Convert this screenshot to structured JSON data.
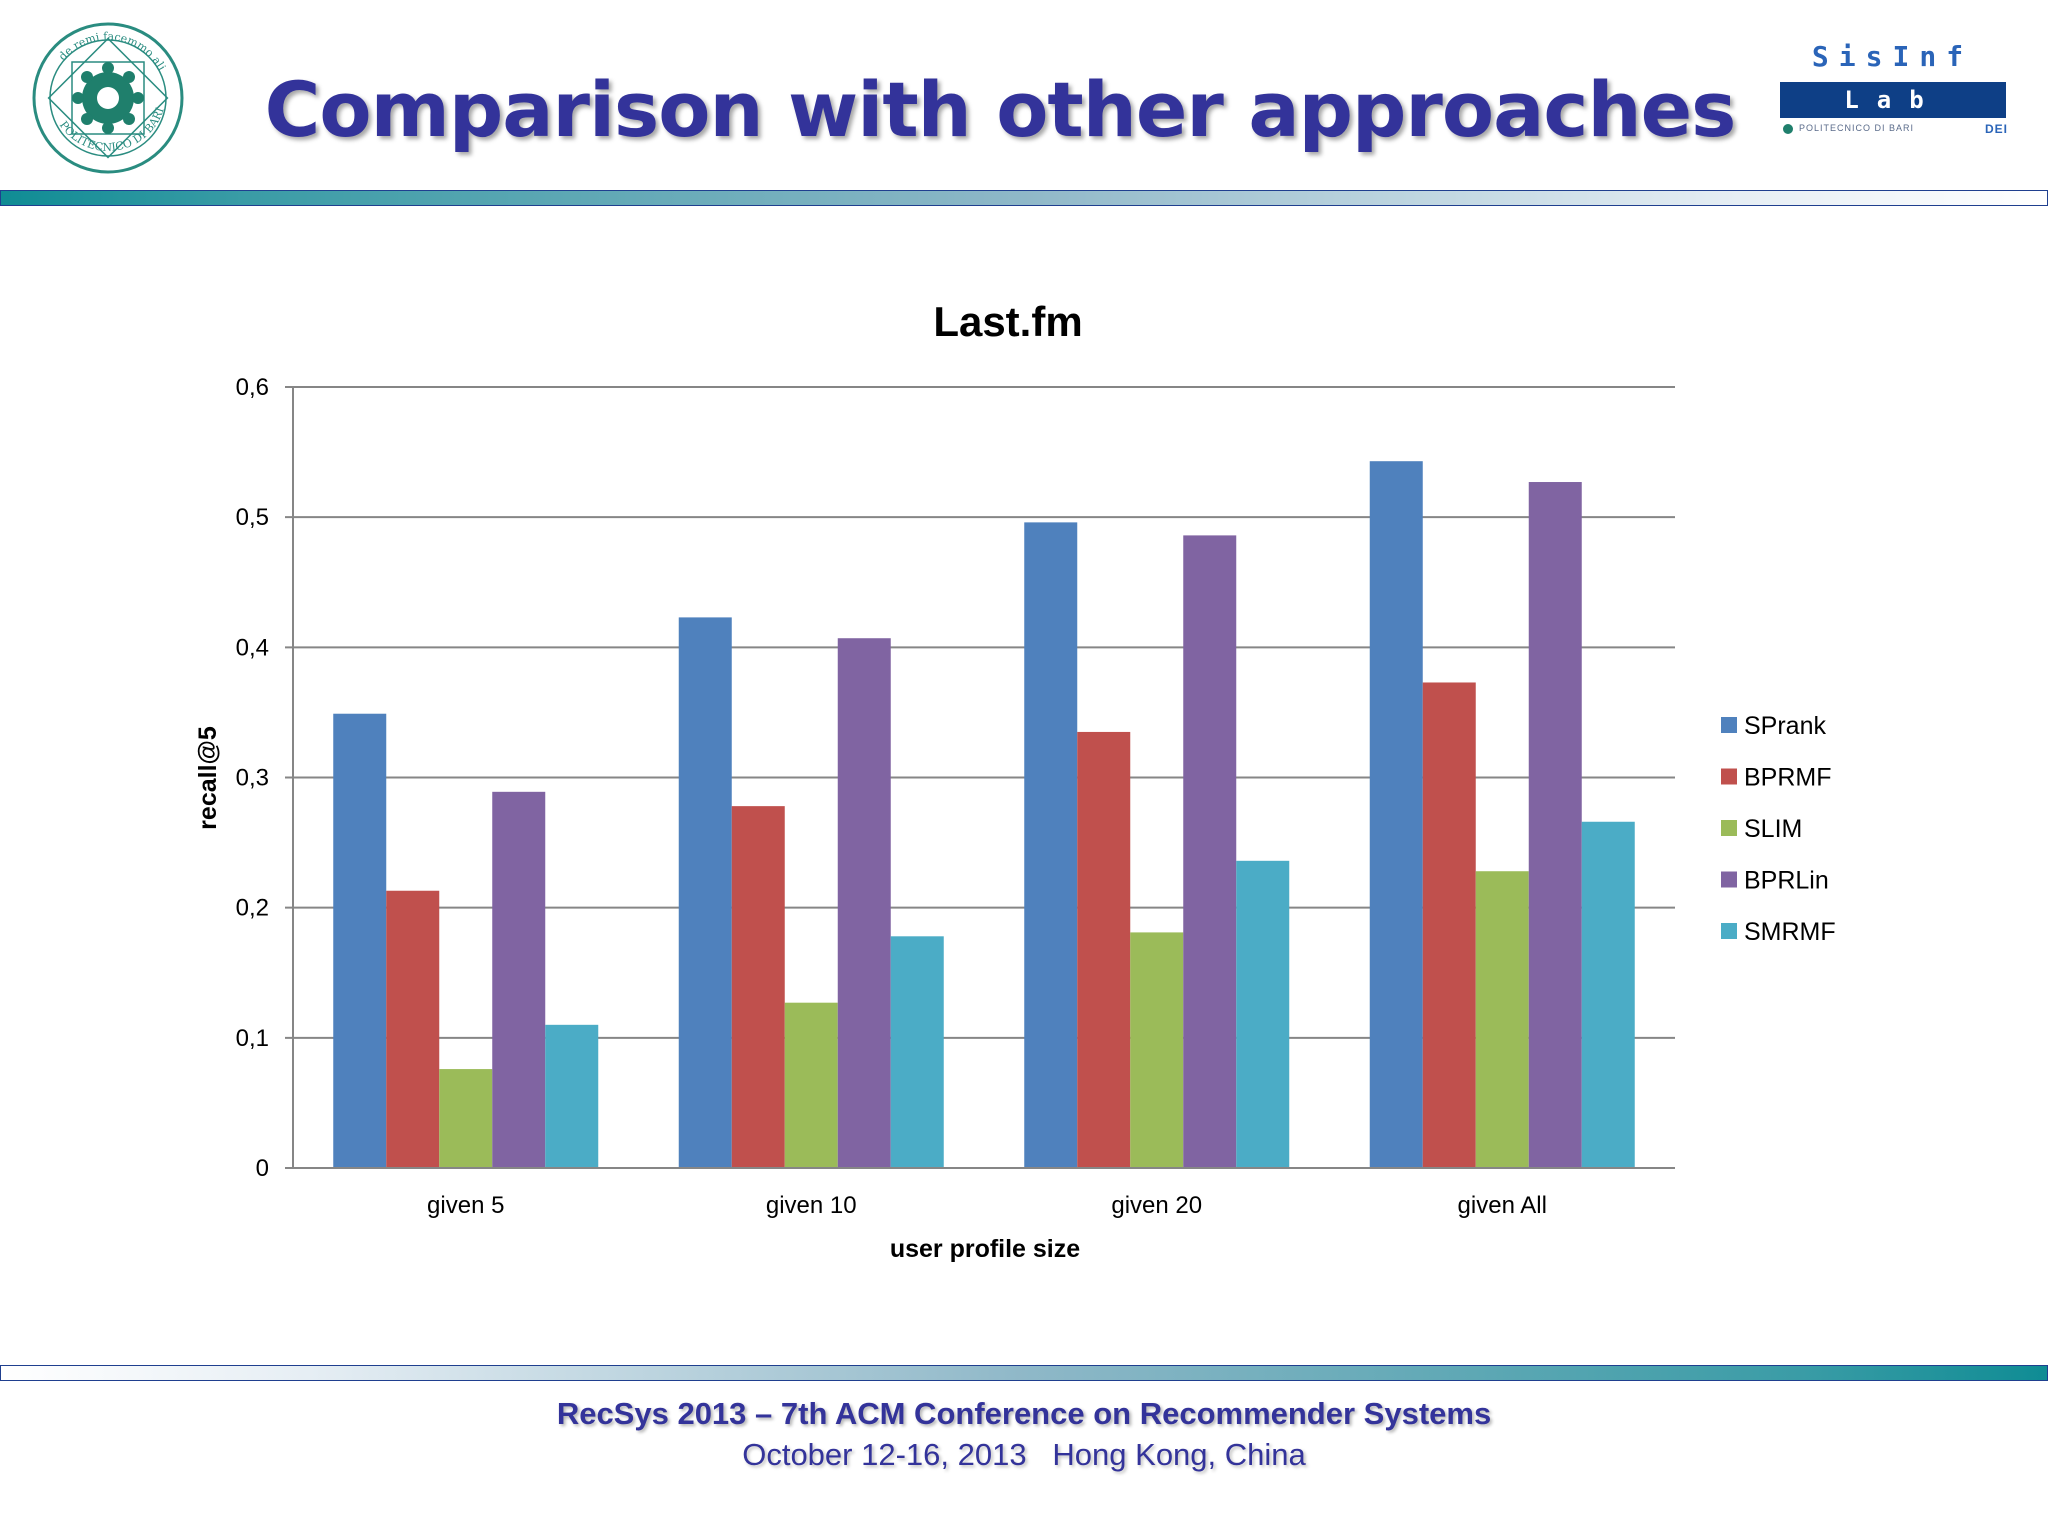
{
  "header": {
    "title": "Comparison with other approaches",
    "logo_left": {
      "icon": "politecnico-di-bari-seal-icon",
      "text": "POLITECNICO DI BARI",
      "motto": "de remi facemmo ali"
    },
    "logo_right": {
      "top": "SisInf",
      "band": "Lab",
      "sub": "POLITECNICO DI BARI",
      "mark": "DEI"
    }
  },
  "footer": {
    "line1": "RecSys 2013 – 7th ACM Conference on Recommender Systems",
    "line2": "October 12-16, 2013   Hong Kong, China"
  },
  "colors": {
    "title": "#33339a",
    "band": "#0f8c94"
  },
  "chart_data": {
    "type": "bar",
    "title": "Last.fm",
    "xlabel": "user profile size",
    "ylabel": "recall@5",
    "categories": [
      "given 5",
      "given 10",
      "given 20",
      "given All"
    ],
    "ylim": [
      0,
      0.6
    ],
    "yticks": [
      {
        "value": 0,
        "label": "0"
      },
      {
        "value": 0.1,
        "label": "0,1"
      },
      {
        "value": 0.2,
        "label": "0,2"
      },
      {
        "value": 0.3,
        "label": "0,3"
      },
      {
        "value": 0.4,
        "label": "0,4"
      },
      {
        "value": 0.5,
        "label": "0,5"
      },
      {
        "value": 0.6,
        "label": "0,6"
      }
    ],
    "grid": true,
    "legend_position": "right",
    "series": [
      {
        "name": "SPrank",
        "color": "#4f81bd",
        "values": [
          0.349,
          0.423,
          0.496,
          0.543
        ]
      },
      {
        "name": "BPRMF",
        "color": "#c0504d",
        "values": [
          0.213,
          0.278,
          0.335,
          0.373
        ]
      },
      {
        "name": "SLIM",
        "color": "#9bbb59",
        "values": [
          0.076,
          0.127,
          0.181,
          0.228
        ]
      },
      {
        "name": "BPRLin",
        "color": "#8064a2",
        "values": [
          0.289,
          0.407,
          0.486,
          0.527
        ]
      },
      {
        "name": "SMRMF",
        "color": "#4bacc6",
        "values": [
          0.11,
          0.178,
          0.236,
          0.266
        ]
      }
    ]
  }
}
